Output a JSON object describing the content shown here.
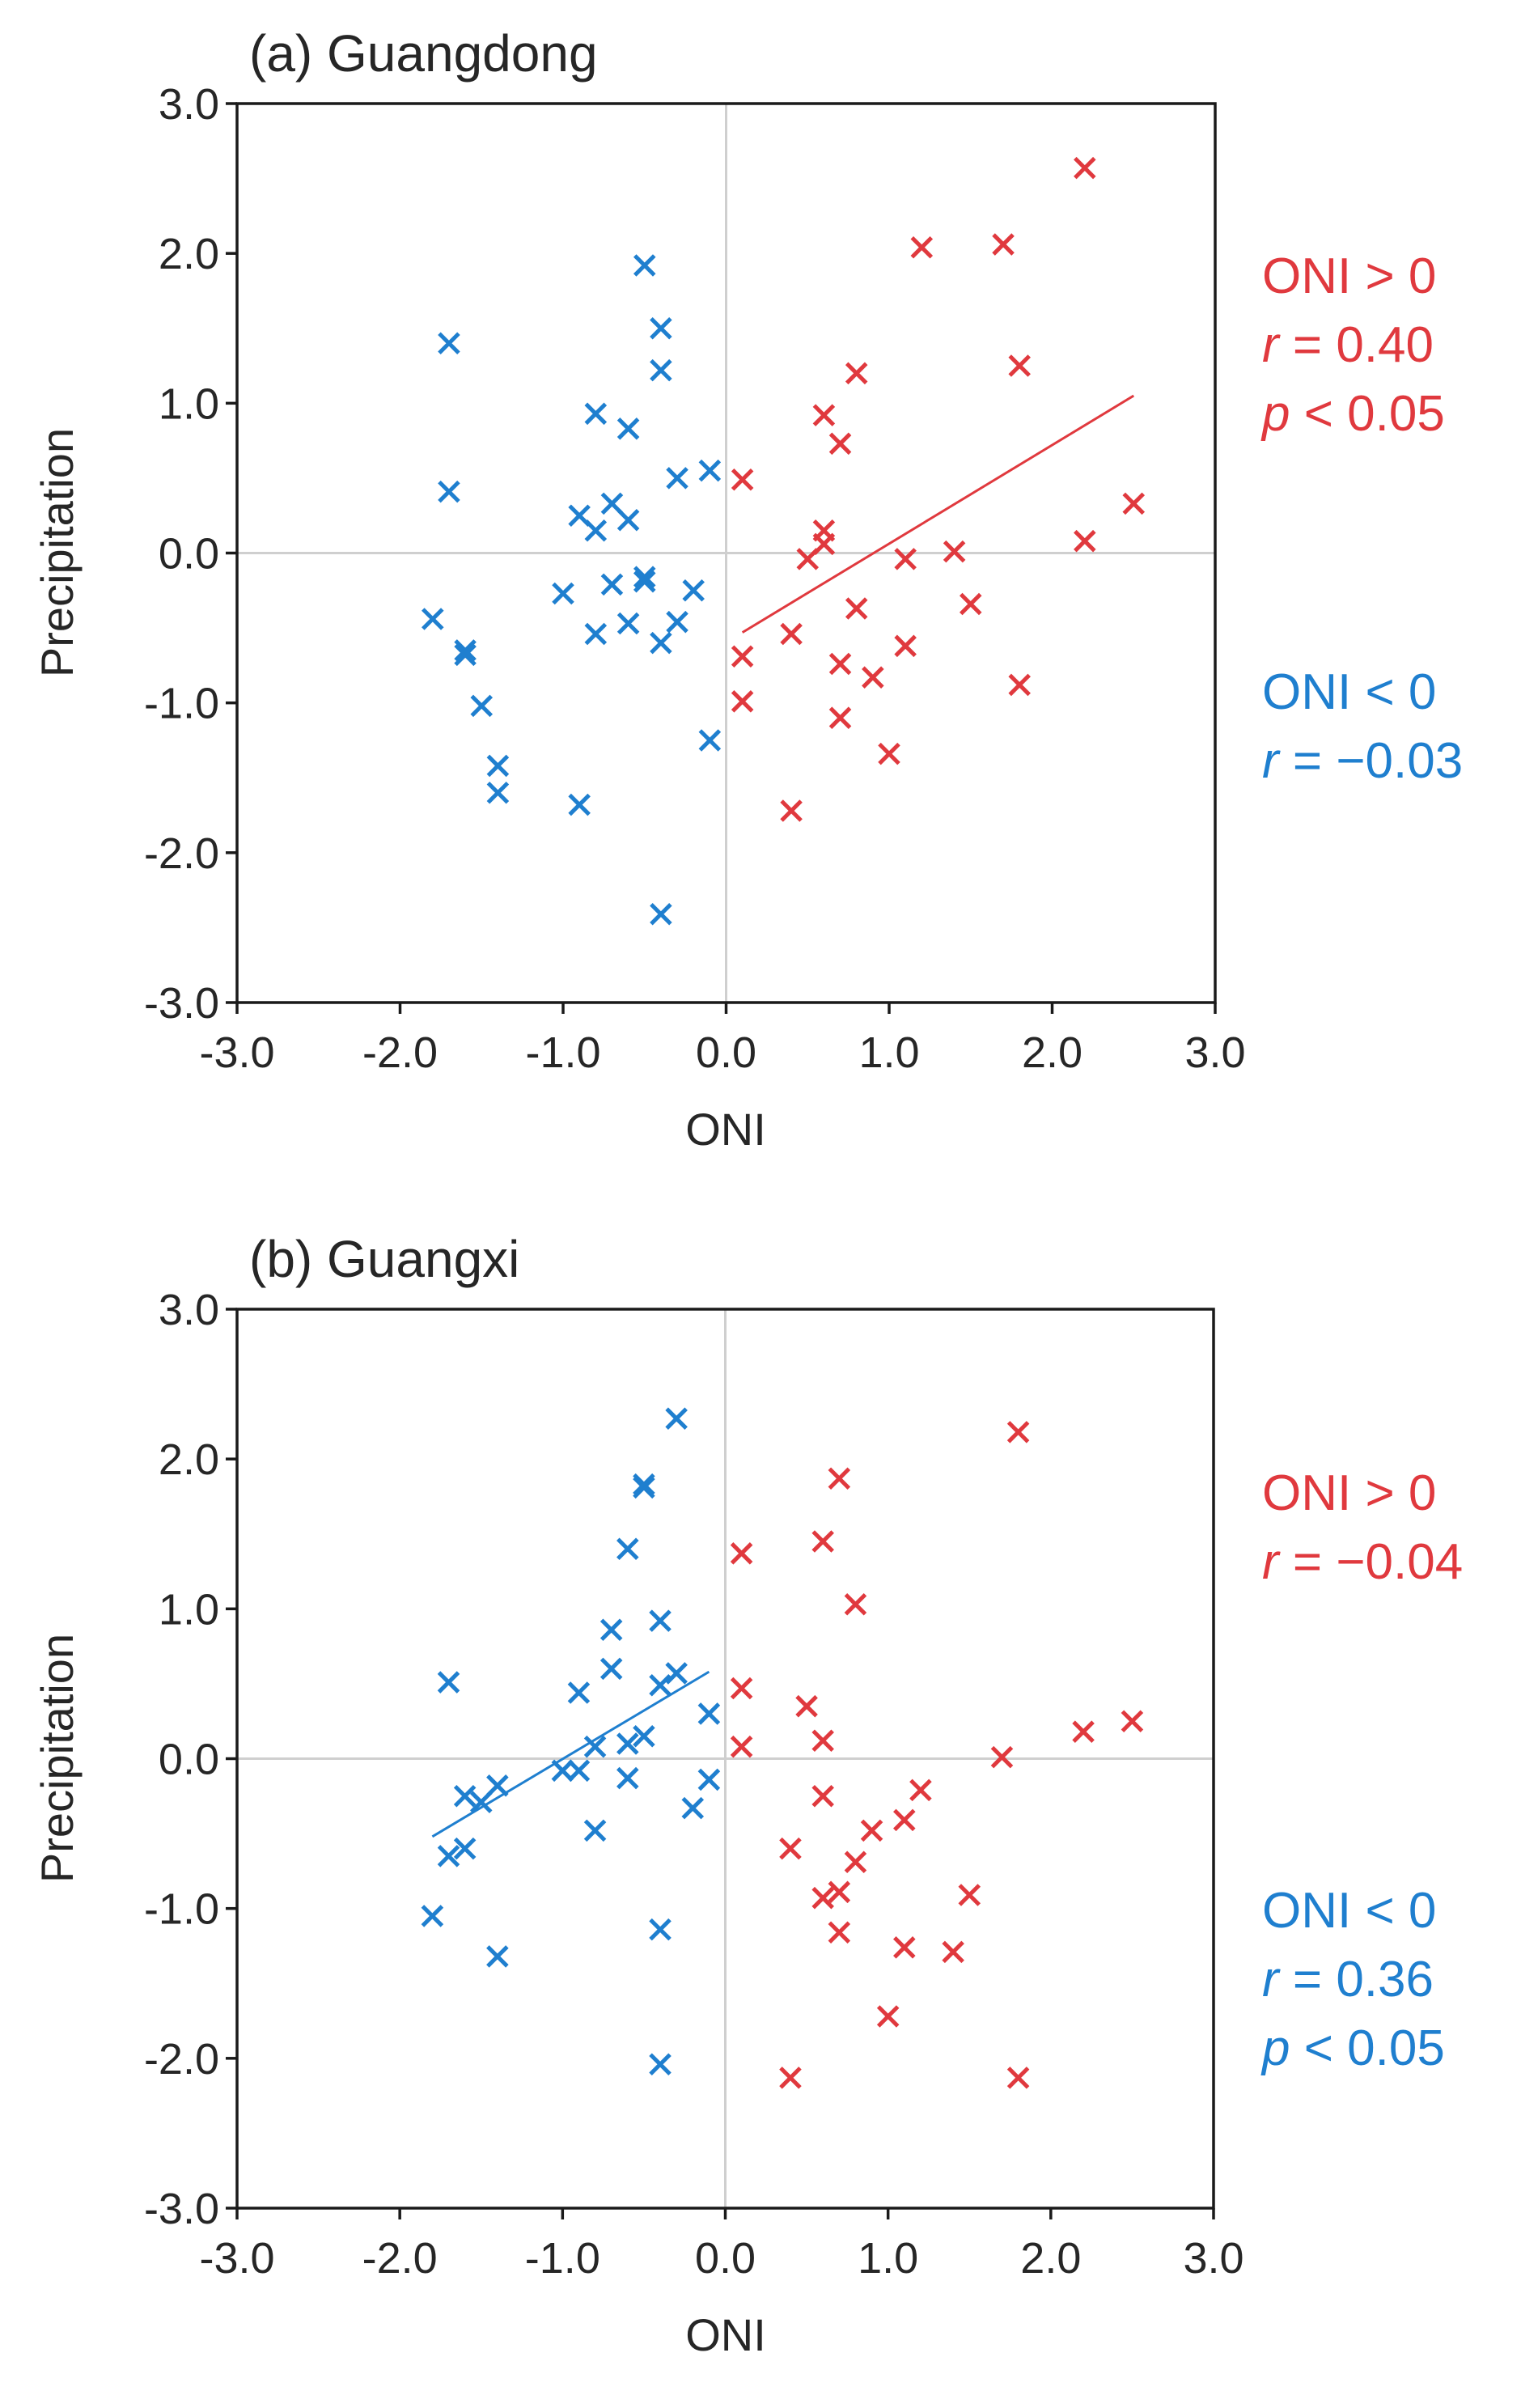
{
  "chart_data": [
    {
      "type": "scatter",
      "title": "(a) Guangdong",
      "xlabel": "ONI",
      "ylabel": "Precipitation",
      "xlim": [
        -3.0,
        3.0
      ],
      "ylim": [
        -3.0,
        3.0
      ],
      "xticks": [
        "-3.0",
        "-2.0",
        "-1.0",
        "0.0",
        "1.0",
        "2.0",
        "3.0"
      ],
      "yticks": [
        "-3.0",
        "-2.0",
        "-1.0",
        "0.0",
        "1.0",
        "2.0",
        "3.0"
      ],
      "series": [
        {
          "name": "ONI > 0",
          "color": "#e0393e",
          "marker": "x",
          "points": [
            [
              2.2,
              2.57
            ],
            [
              1.2,
              2.04
            ],
            [
              1.7,
              2.06
            ],
            [
              1.8,
              1.25
            ],
            [
              0.8,
              1.2
            ],
            [
              0.6,
              0.92
            ],
            [
              0.7,
              0.73
            ],
            [
              0.1,
              0.49
            ],
            [
              2.5,
              0.33
            ],
            [
              2.2,
              0.08
            ],
            [
              0.6,
              0.15
            ],
            [
              0.6,
              0.06
            ],
            [
              0.5,
              -0.04
            ],
            [
              1.4,
              0.01
            ],
            [
              1.1,
              -0.04
            ],
            [
              1.5,
              -0.34
            ],
            [
              0.8,
              -0.37
            ],
            [
              0.4,
              -0.54
            ],
            [
              1.1,
              -0.62
            ],
            [
              0.1,
              -0.69
            ],
            [
              0.7,
              -0.74
            ],
            [
              0.9,
              -0.83
            ],
            [
              1.8,
              -0.88
            ],
            [
              0.1,
              -0.99
            ],
            [
              0.7,
              -1.1
            ],
            [
              1.0,
              -1.34
            ],
            [
              0.4,
              -1.72
            ]
          ],
          "trend": {
            "x": [
              0.1,
              2.5
            ],
            "y": [
              -0.53,
              1.05
            ]
          },
          "stats": {
            "label": "ONI > 0",
            "r_prefix": "r",
            "r_text": " = 0.40",
            "p_prefix": "p",
            "p_text": " < 0.05"
          }
        },
        {
          "name": "ONI < 0",
          "color": "#1f7fcf",
          "marker": "x",
          "points": [
            [
              -0.5,
              1.92
            ],
            [
              -0.4,
              1.5
            ],
            [
              -0.4,
              1.22
            ],
            [
              -1.7,
              1.4
            ],
            [
              -0.8,
              0.93
            ],
            [
              -0.6,
              0.83
            ],
            [
              -1.7,
              0.41
            ],
            [
              -0.1,
              0.55
            ],
            [
              -0.3,
              0.5
            ],
            [
              -0.7,
              0.33
            ],
            [
              -0.9,
              0.25
            ],
            [
              -0.6,
              0.22
            ],
            [
              -0.8,
              0.15
            ],
            [
              -0.5,
              -0.16
            ],
            [
              -0.5,
              -0.19
            ],
            [
              -0.7,
              -0.21
            ],
            [
              -1.0,
              -0.27
            ],
            [
              -0.2,
              -0.25
            ],
            [
              -1.8,
              -0.44
            ],
            [
              -0.6,
              -0.47
            ],
            [
              -0.3,
              -0.46
            ],
            [
              -0.8,
              -0.54
            ],
            [
              -0.4,
              -0.6
            ],
            [
              -1.6,
              -0.65
            ],
            [
              -1.6,
              -0.68
            ],
            [
              -1.5,
              -1.02
            ],
            [
              -0.1,
              -1.25
            ],
            [
              -1.4,
              -1.42
            ],
            [
              -1.4,
              -1.6
            ],
            [
              -0.9,
              -1.68
            ],
            [
              -0.4,
              -2.41
            ]
          ],
          "stats": {
            "label": "ONI < 0",
            "r_prefix": "r",
            "r_text": " = −0.03"
          }
        }
      ]
    },
    {
      "type": "scatter",
      "title": "(b) Guangxi",
      "xlabel": "ONI",
      "ylabel": "Precipitation",
      "xlim": [
        -3.0,
        3.0
      ],
      "ylim": [
        -3.0,
        3.0
      ],
      "xticks": [
        "-3.0",
        "-2.0",
        "-1.0",
        "0.0",
        "1.0",
        "2.0",
        "3.0"
      ],
      "yticks": [
        "-3.0",
        "-2.0",
        "-1.0",
        "0.0",
        "1.0",
        "2.0",
        "3.0"
      ],
      "series": [
        {
          "name": "ONI > 0",
          "color": "#e0393e",
          "marker": "x",
          "points": [
            [
              1.8,
              2.18
            ],
            [
              0.7,
              1.87
            ],
            [
              0.6,
              1.45
            ],
            [
              0.1,
              1.37
            ],
            [
              0.8,
              1.03
            ],
            [
              0.1,
              0.47
            ],
            [
              0.5,
              0.35
            ],
            [
              2.5,
              0.25
            ],
            [
              2.2,
              0.18
            ],
            [
              0.6,
              0.12
            ],
            [
              0.1,
              0.08
            ],
            [
              1.7,
              0.01
            ],
            [
              0.6,
              -0.25
            ],
            [
              1.2,
              -0.21
            ],
            [
              1.1,
              -0.41
            ],
            [
              0.9,
              -0.48
            ],
            [
              0.4,
              -0.6
            ],
            [
              0.8,
              -0.69
            ],
            [
              0.7,
              -0.89
            ],
            [
              0.6,
              -0.93
            ],
            [
              1.5,
              -0.91
            ],
            [
              0.7,
              -1.16
            ],
            [
              1.1,
              -1.26
            ],
            [
              1.4,
              -1.29
            ],
            [
              1.0,
              -1.72
            ],
            [
              0.4,
              -2.13
            ],
            [
              1.8,
              -2.13
            ]
          ],
          "stats": {
            "label": "ONI > 0",
            "r_prefix": "r",
            "r_text": " = −0.04"
          }
        },
        {
          "name": "ONI < 0",
          "color": "#1f7fcf",
          "marker": "x",
          "points": [
            [
              -0.3,
              2.27
            ],
            [
              -0.5,
              1.83
            ],
            [
              -0.5,
              1.81
            ],
            [
              -0.6,
              1.4
            ],
            [
              -0.4,
              0.92
            ],
            [
              -0.7,
              0.86
            ],
            [
              -0.7,
              0.6
            ],
            [
              -0.3,
              0.57
            ],
            [
              -1.7,
              0.51
            ],
            [
              -0.4,
              0.49
            ],
            [
              -0.9,
              0.44
            ],
            [
              -0.1,
              0.3
            ],
            [
              -0.5,
              0.15
            ],
            [
              -0.6,
              0.1
            ],
            [
              -0.8,
              0.08
            ],
            [
              -0.6,
              -0.13
            ],
            [
              -1.0,
              -0.08
            ],
            [
              -0.9,
              -0.08
            ],
            [
              -0.1,
              -0.14
            ],
            [
              -1.4,
              -0.18
            ],
            [
              -1.6,
              -0.25
            ],
            [
              -1.5,
              -0.29
            ],
            [
              -0.2,
              -0.33
            ],
            [
              -0.8,
              -0.48
            ],
            [
              -1.6,
              -0.6
            ],
            [
              -1.7,
              -0.65
            ],
            [
              -1.8,
              -1.05
            ],
            [
              -0.4,
              -1.14
            ],
            [
              -1.4,
              -1.32
            ],
            [
              -0.4,
              -2.04
            ]
          ],
          "trend": {
            "x": [
              -1.8,
              -0.1
            ],
            "y": [
              -0.52,
              0.58
            ]
          },
          "stats": {
            "label": "ONI < 0",
            "r_prefix": "r",
            "r_text": " = 0.36",
            "p_prefix": "p",
            "p_text": " < 0.05"
          }
        }
      ]
    }
  ]
}
